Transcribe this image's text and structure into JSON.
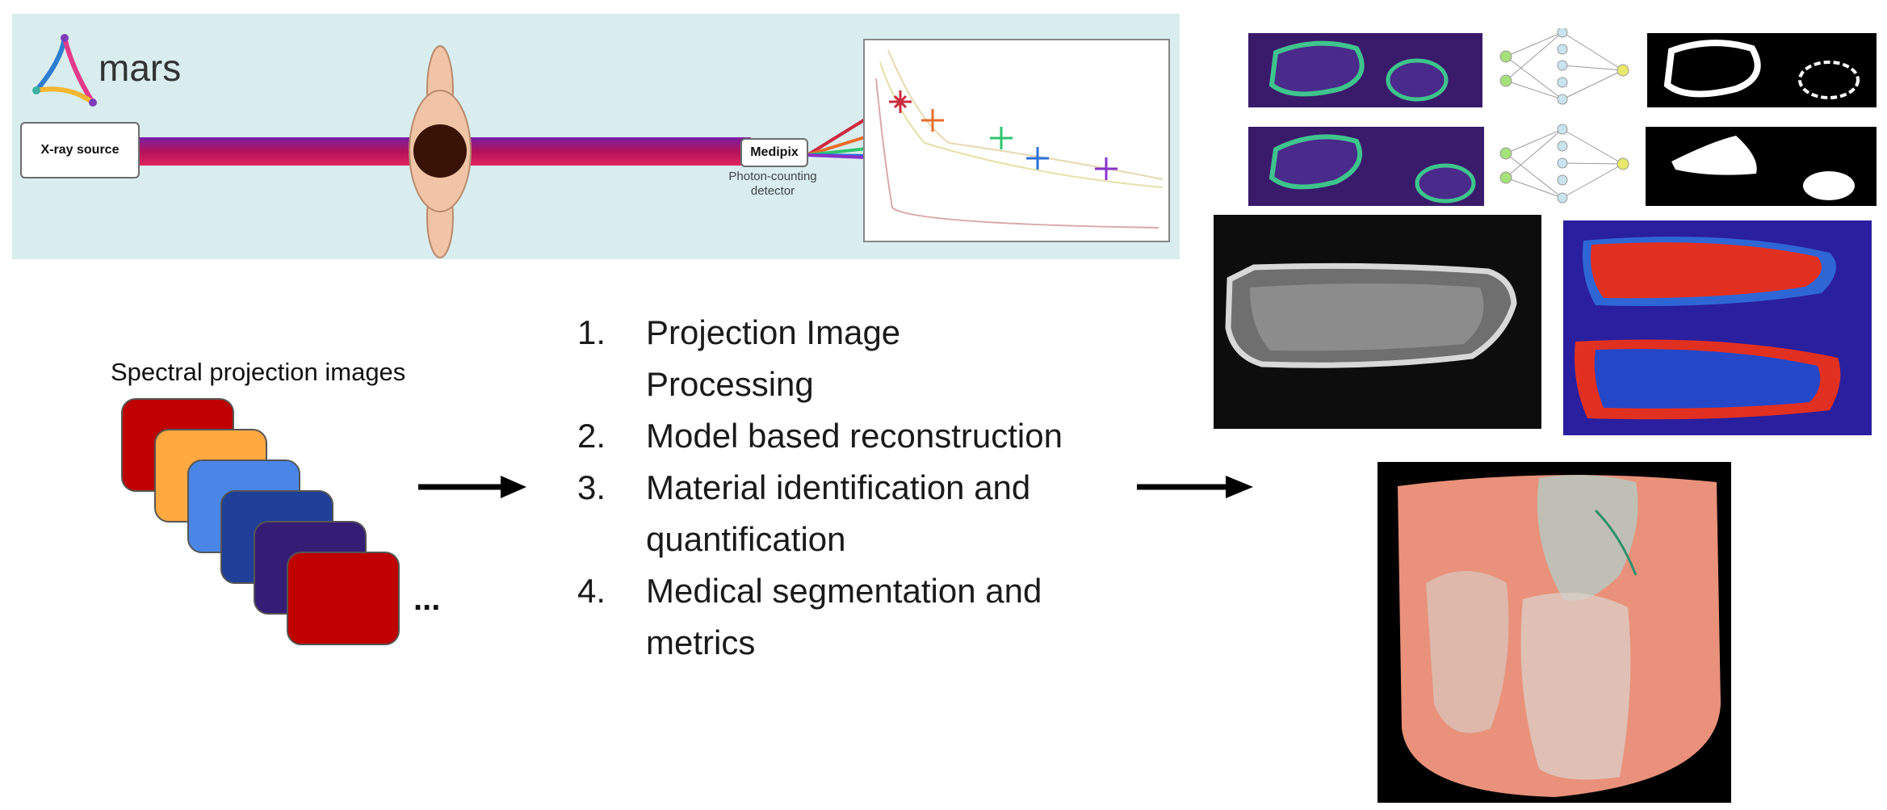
{
  "setup_panel": {
    "logo_text": "mars",
    "source_label": "X-ray source",
    "detector_label": "Medipix",
    "detector_caption_line1": "Photon-counting",
    "detector_caption_line2": "detector"
  },
  "input": {
    "title": "Spectral projection images",
    "ellipsis": "...",
    "card_colors": [
      "#c00000",
      "#ffa940",
      "#4a86e8",
      "#1f3f99",
      "#351c75",
      "#c00000"
    ]
  },
  "steps": [
    {
      "num": "1.",
      "line1": "Projection Image",
      "line2": "Processing"
    },
    {
      "num": "2.",
      "line1": "Model based reconstruction",
      "line2": ""
    },
    {
      "num": "3.",
      "line1": "Material identification and",
      "line2": "quantification"
    },
    {
      "num": "4.",
      "line1": "Medical segmentation and",
      "line2": "metrics"
    }
  ],
  "colors": {
    "beam": "#a0195e",
    "panel_bg": "#d9edef",
    "outline_green": "#3ec48d",
    "seg_purple": "#3a1a6b"
  }
}
